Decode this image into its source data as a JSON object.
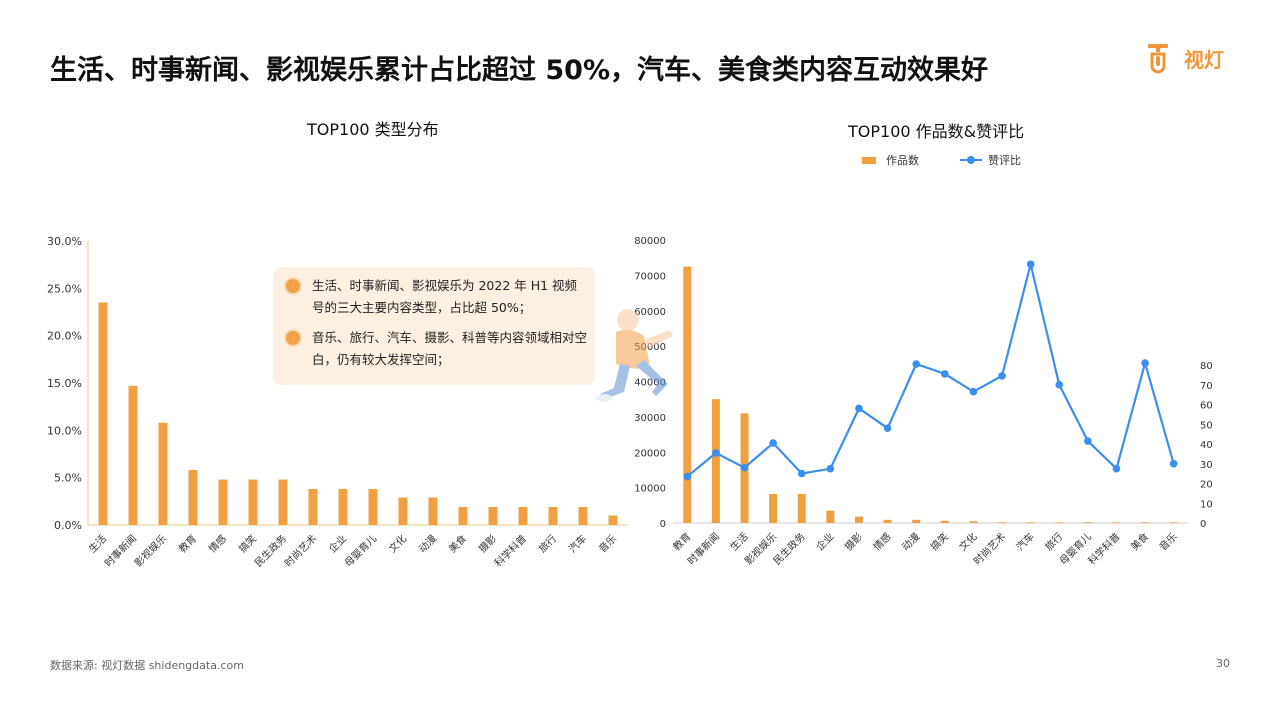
{
  "headline": "生活、时事新闻、影视娱乐累计占比超过 50%，汽车、美食类内容互动效果好",
  "logo": {
    "text": "视灯",
    "color": "#f0963a"
  },
  "colors": {
    "bar": "#f0a040",
    "line": "#3a8ef0",
    "grid": "#e8e8e8"
  },
  "callout": {
    "items": [
      "生活、时事新闻、影视娱乐为 2022 年 H1 视频号的三大主要内容类型，占比超 50%；",
      "音乐、旅行、汽车、摄影、科普等内容领域相对空白，仍有较大发挥空间；"
    ]
  },
  "footer": {
    "source": "数据来源: 视灯数据 shidengdata.com",
    "page": "30"
  },
  "chart_data": [
    {
      "type": "bar",
      "title": "TOP100 类型分布",
      "categories": [
        "生活",
        "时事新闻",
        "影视娱乐",
        "教育",
        "情感",
        "搞笑",
        "民生政务",
        "时尚艺术",
        "企业",
        "母婴育儿",
        "文化",
        "动漫",
        "美食",
        "摄影",
        "科学科普",
        "旅行",
        "汽车",
        "音乐"
      ],
      "values": [
        23.5,
        14.7,
        10.8,
        5.8,
        4.8,
        4.8,
        4.8,
        3.8,
        3.8,
        3.8,
        2.9,
        2.9,
        1.9,
        1.9,
        1.9,
        1.9,
        1.9,
        1.0
      ],
      "ylim": [
        0,
        30
      ],
      "yticks": [
        "0.0%",
        "5.0%",
        "10.0%",
        "15.0%",
        "20.0%",
        "25.0%",
        "30.0%"
      ],
      "grid": false
    },
    {
      "type": "bar+line",
      "title": "TOP100 作品数&赞评比",
      "legend": [
        "作品数",
        "赞评比"
      ],
      "legend_position": "top",
      "categories": [
        "教育",
        "时事新闻",
        "生活",
        "影视娱乐",
        "民生政务",
        "企业",
        "摄影",
        "情感",
        "动漫",
        "搞笑",
        "文化",
        "时尚艺术",
        "汽车",
        "旅行",
        "母婴育儿",
        "科学科普",
        "美食",
        "音乐"
      ],
      "series": [
        {
          "name": "作品数",
          "type": "bar",
          "axis": "left",
          "values": [
            72500,
            35000,
            31000,
            8200,
            8200,
            3500,
            1800,
            900,
            900,
            600,
            500,
            200,
            200,
            200,
            200,
            200,
            200,
            200
          ]
        },
        {
          "name": "赞评比",
          "type": "line",
          "axis": "right",
          "values": [
            23.5,
            35.5,
            28,
            40.5,
            25,
            27.5,
            58,
            48,
            80.5,
            75.5,
            66.5,
            74.5,
            131,
            70,
            41.5,
            27.5,
            81,
            30
          ]
        }
      ],
      "ylim_left": [
        0,
        80000
      ],
      "yticks_left": [
        "0",
        "10000",
        "20000",
        "30000",
        "40000",
        "50000",
        "60000",
        "70000",
        "80000"
      ],
      "yticks_right": [
        "0",
        "10",
        "20",
        "30",
        "40",
        "50",
        "60",
        "70",
        "80"
      ],
      "grid": false
    }
  ]
}
